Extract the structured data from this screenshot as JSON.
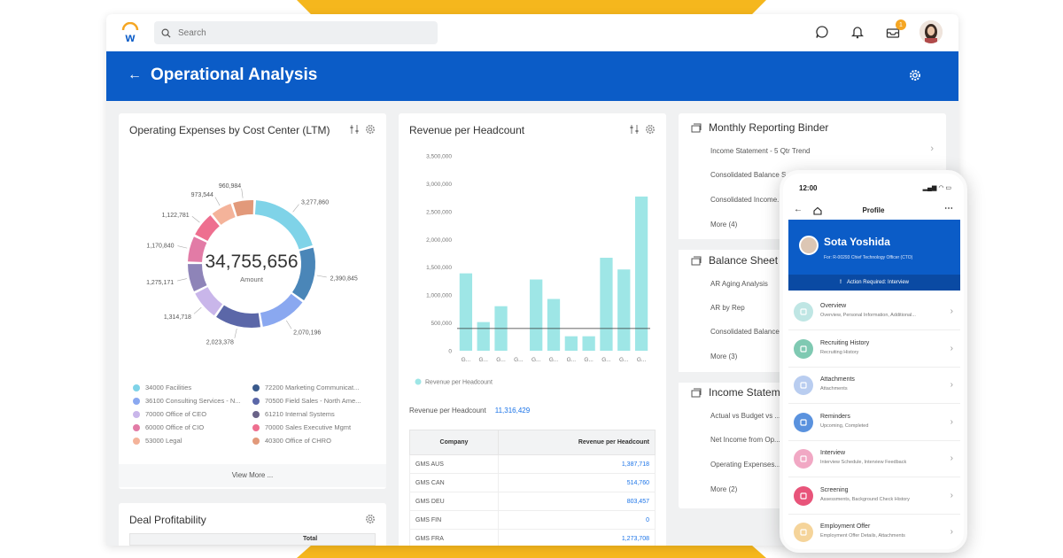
{
  "search": {
    "placeholder": "Search"
  },
  "header": {
    "notification_count": "1"
  },
  "page": {
    "title": "Operational Analysis"
  },
  "expenses": {
    "title": "Operating Expenses by Cost Center (LTM)",
    "total": "34,755,656",
    "total_label": "Amount",
    "view_more": "View More ...",
    "colors": [
      "#7fd3e8",
      "#4a86b8",
      "#8aa8f0",
      "#5b67a8",
      "#c9b6ea",
      "#8e84b8",
      "#e27ba6",
      "#ee6f8f",
      "#f4b39a",
      "#e2997a",
      "#89b8e2",
      "#a8d0e4"
    ],
    "legend": [
      {
        "label": "34000 Facilities",
        "color": "#7fd3e8"
      },
      {
        "label": "72200 Marketing Communicat...",
        "color": "#3a5a8c"
      },
      {
        "label": "36100 Consulting Services - N...",
        "color": "#8aa8f0"
      },
      {
        "label": "70500 Field Sales - North Ame...",
        "color": "#5b67a8"
      },
      {
        "label": "70000 Office of CEO",
        "color": "#c9b6ea"
      },
      {
        "label": "61210 Internal Systems",
        "color": "#6a6388"
      },
      {
        "label": "60000 Office of CIO",
        "color": "#e27ba6"
      },
      {
        "label": "70000 Sales Executive Mgmt",
        "color": "#ee6f8f"
      },
      {
        "label": "53000 Legal",
        "color": "#f4b39a"
      },
      {
        "label": "40300 Office of CHRO",
        "color": "#e2997a"
      }
    ]
  },
  "deal": {
    "title": "Deal Profitability",
    "col_total": "Total"
  },
  "revenue": {
    "title": "Revenue per Headcount",
    "legend_label": "Revenue per Headcount",
    "total_label": "Revenue per Headcount",
    "total_value": "11,316,429",
    "table_headers": [
      "Company",
      "Revenue per Headcount"
    ],
    "table_rows": [
      {
        "company": "GMS AUS",
        "value": "1,387,718"
      },
      {
        "company": "GMS CAN",
        "value": "514,760"
      },
      {
        "company": "GMS DEU",
        "value": "803,457"
      },
      {
        "company": "GMS FIN",
        "value": "0"
      },
      {
        "company": "GMS FRA",
        "value": "1,273,708"
      }
    ]
  },
  "binder": {
    "title": "Monthly Reporting Binder",
    "items": [
      "Income Statement - 5 Qtr Trend",
      "Consolidated Balance S...",
      "Consolidated Income...",
      "More (4)"
    ],
    "balance_title": "Balance Sheet",
    "balance_items": [
      "AR Aging Analysis",
      "AR by Rep",
      "Consolidated Balance...",
      "More (3)"
    ],
    "income_title": "Income Statem...",
    "income_items": [
      "Actual vs Budget vs ...",
      "Net Income from Op...",
      "Operating Expenses...",
      "More (2)"
    ]
  },
  "phone": {
    "time": "12:00",
    "nav_title": "Profile",
    "name": "Sota Yoshida",
    "role": "For: R-00293 Chief Technology Officer (CTO)",
    "action": "Action Required: Interview",
    "rows": [
      {
        "title": "Overview",
        "sub": "Overview, Personal Information, Additional...",
        "color": "#bfe6e4",
        "icon": "overview-icon"
      },
      {
        "title": "Recruiting History",
        "sub": "Recruiting History",
        "color": "#7fc9b2",
        "icon": "history-icon"
      },
      {
        "title": "Attachments",
        "sub": "Attachments",
        "color": "#b9cdf0",
        "icon": "attachment-icon"
      },
      {
        "title": "Reminders",
        "sub": "Upcoming, Completed",
        "color": "#5a92de",
        "icon": "reminder-icon"
      },
      {
        "title": "Interview",
        "sub": "Interview Schedule, Interview Feedback",
        "color": "#f1a8c4",
        "icon": "interview-icon"
      },
      {
        "title": "Screening",
        "sub": "Assessments, Background Check History",
        "color": "#e8547a",
        "icon": "screening-icon"
      },
      {
        "title": "Employment Offer",
        "sub": "Employment Offer Details, Attachments",
        "color": "#f5d49a",
        "icon": "offer-icon"
      }
    ]
  },
  "chart_data": [
    {
      "type": "pie",
      "title": "Operating Expenses by Cost Center (LTM)",
      "donut": true,
      "center_value": "34,755,656",
      "center_label": "Amount",
      "values": [
        3277860,
        2390845,
        2070196,
        2023378,
        1314718,
        1275171,
        1170840,
        1122781,
        973544,
        960984
      ],
      "value_labels": [
        "3,277,860",
        "2,390,845",
        "2,070,196",
        "2,023,378",
        "1,314,718",
        "1,275,171",
        "1,170,840",
        "1,122,781",
        "973,544",
        "960,984"
      ]
    },
    {
      "type": "bar",
      "title": "Revenue per Headcount",
      "ylim": [
        0,
        3500000
      ],
      "yticks": [
        "0",
        "500,000",
        "1,000,000",
        "1,500,000",
        "2,000,000",
        "2,500,000",
        "3,000,000",
        "3,500,000"
      ],
      "categories": [
        "G...",
        "G...",
        "G...",
        "G...",
        "G...",
        "G...",
        "G...",
        "G...",
        "G...",
        "G...",
        "G..."
      ],
      "series": [
        {
          "name": "Revenue per Headcount",
          "values": [
            1390000,
            515000,
            800000,
            0,
            1280000,
            930000,
            260000,
            260000,
            1670000,
            1460000,
            2770000
          ]
        }
      ],
      "reference_line": 400000,
      "color": "#9ee6e6"
    }
  ]
}
